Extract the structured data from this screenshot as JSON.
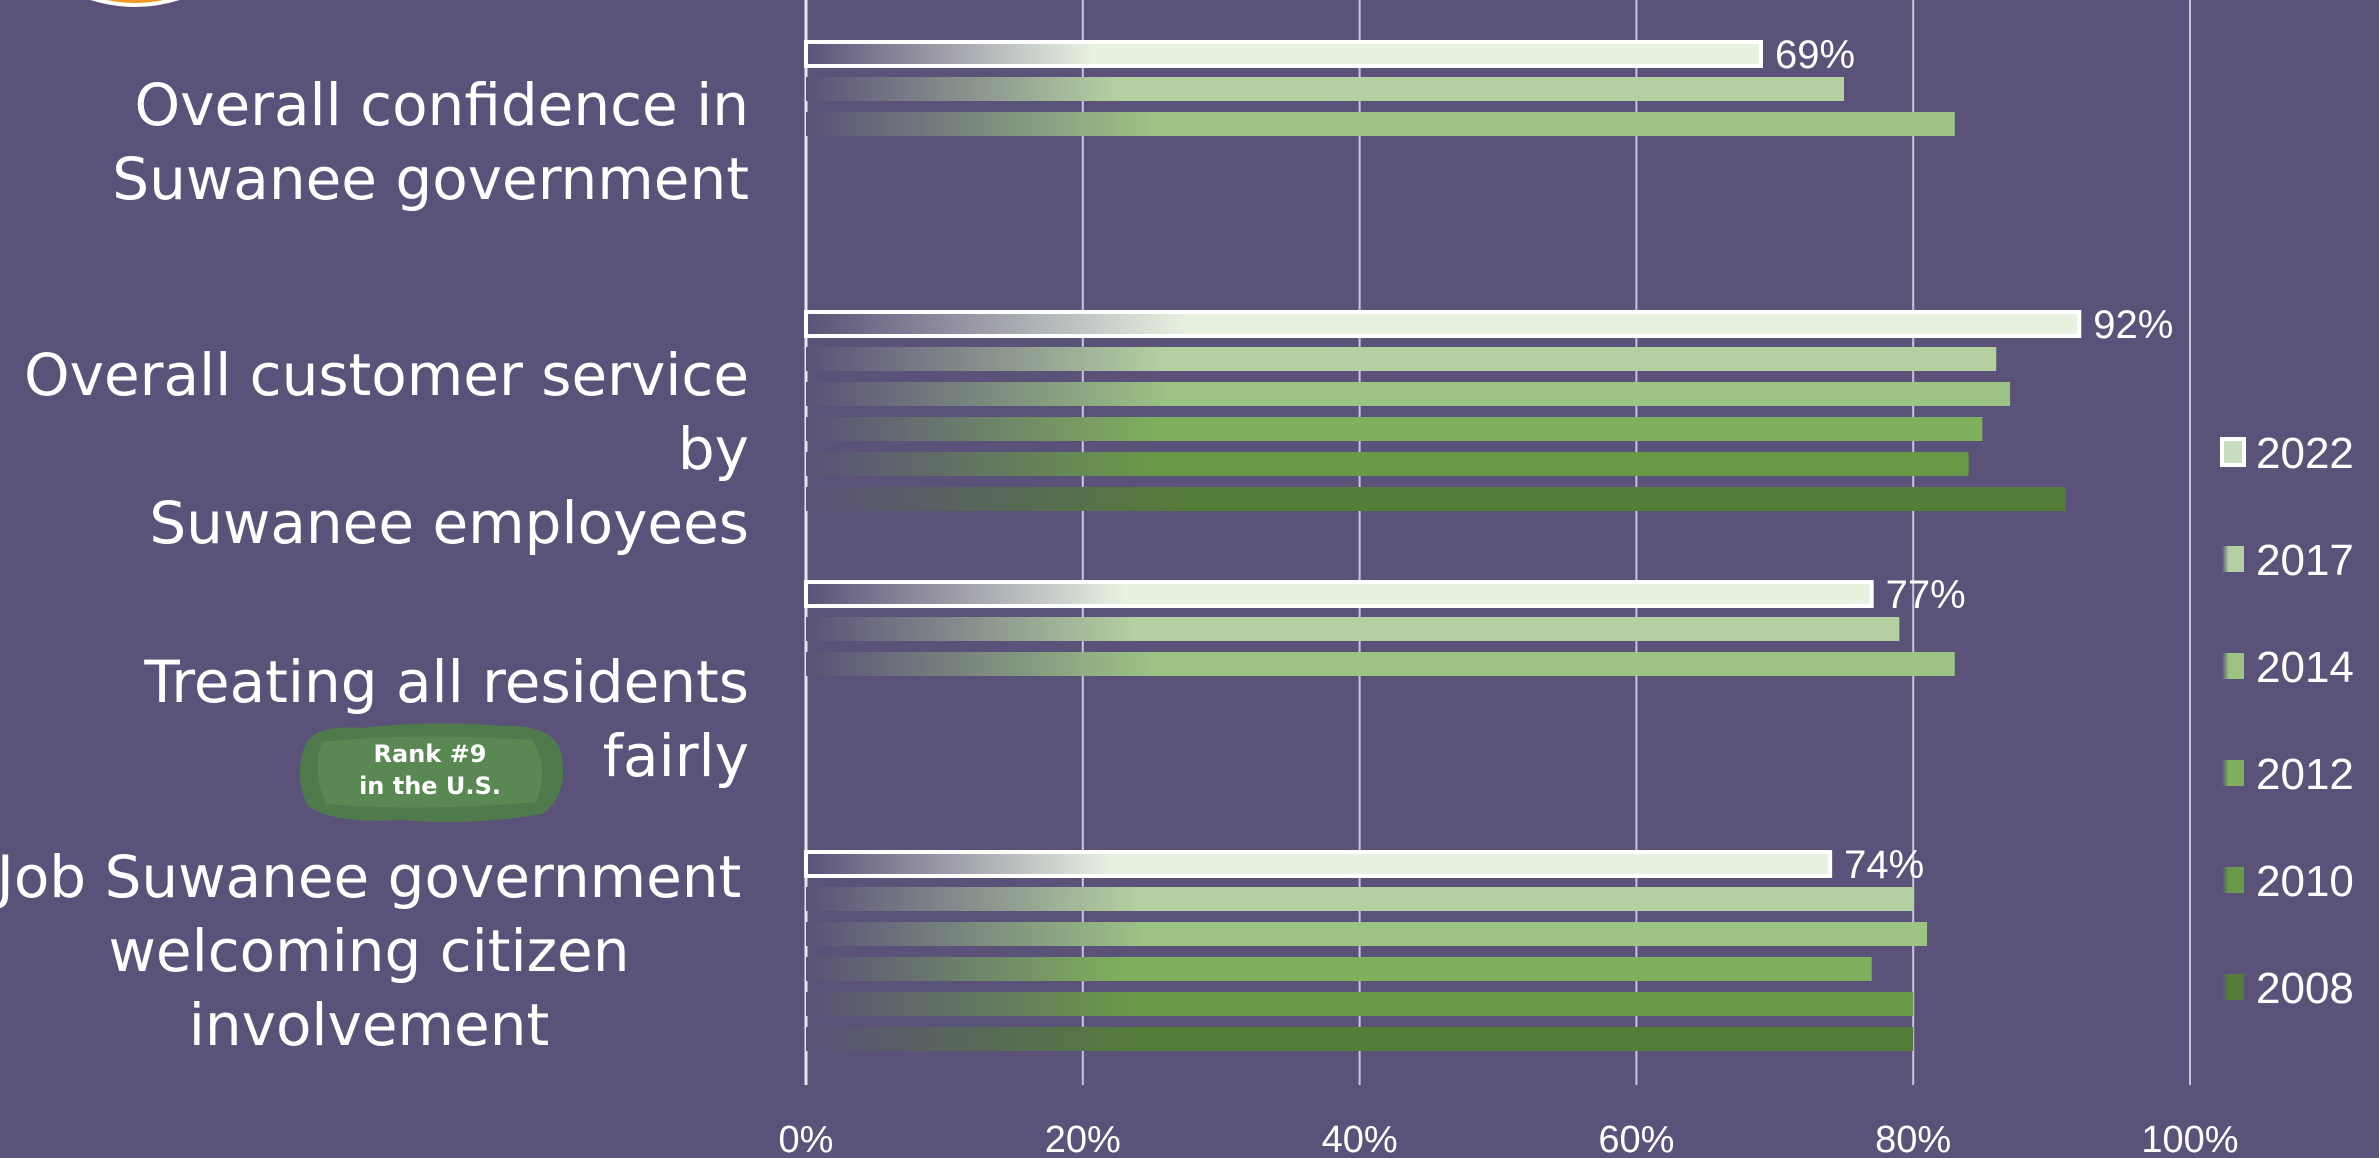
{
  "badge": {
    "text": "Rank #9\nin the U.S."
  },
  "chart_data": {
    "type": "bar",
    "orientation": "horizontal",
    "xlim": [
      0,
      100
    ],
    "x_ticks": [
      "0%",
      "20%",
      "40%",
      "60%",
      "80%",
      "100%"
    ],
    "grid": true,
    "legend_position": "right",
    "legend": [
      "2022",
      "2017",
      "2014",
      "2012",
      "2010",
      "2008"
    ],
    "colors": {
      "2022": "#e8f2e0",
      "2017": "#b4cfa0",
      "2014": "#9cc284",
      "2012": "#7fb05c",
      "2010": "#6a9a48",
      "2008": "#557d3a"
    },
    "groups": [
      {
        "label": "Overall confidence in\nSuwanee government",
        "bars": [
          {
            "year": "2022",
            "value": 69,
            "label": "69%"
          },
          {
            "year": "2017",
            "value": 75
          },
          {
            "year": "2014",
            "value": 83
          }
        ]
      },
      {
        "label": "Overall customer service by\nSuwanee employees",
        "bars": [
          {
            "year": "2022",
            "value": 92,
            "label": "92%"
          },
          {
            "year": "2017",
            "value": 86
          },
          {
            "year": "2014",
            "value": 87
          },
          {
            "year": "2012",
            "value": 85
          },
          {
            "year": "2010",
            "value": 84
          },
          {
            "year": "2008",
            "value": 91
          }
        ]
      },
      {
        "label": "Treating all residents fairly",
        "bars": [
          {
            "year": "2022",
            "value": 77,
            "label": "77%"
          },
          {
            "year": "2017",
            "value": 79
          },
          {
            "year": "2014",
            "value": 83
          }
        ]
      },
      {
        "label": "Job Suwanee government\nwelcoming citizen\ninvolvement",
        "bars": [
          {
            "year": "2022",
            "value": 74,
            "label": "74%"
          },
          {
            "year": "2017",
            "value": 80
          },
          {
            "year": "2014",
            "value": 81
          },
          {
            "year": "2012",
            "value": 77
          },
          {
            "year": "2010",
            "value": 80
          },
          {
            "year": "2008",
            "value": 80
          }
        ]
      }
    ]
  }
}
